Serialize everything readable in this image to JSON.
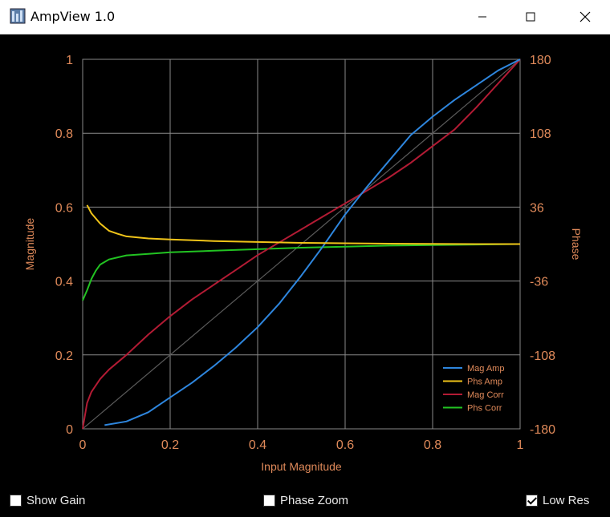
{
  "window": {
    "title": "AmpView 1.0"
  },
  "window_controls": {
    "minimize": "—",
    "maximize": "☐",
    "close": "✕"
  },
  "chart_data": {
    "type": "line",
    "xlabel": "Input Magnitude",
    "ylabel": "Magnitude",
    "y2label": "Phase",
    "xlim": [
      0,
      1
    ],
    "ylim": [
      0,
      1
    ],
    "y2lim": [
      -180,
      180
    ],
    "x_ticks": [
      "0",
      "0.2",
      "0.4",
      "0.6",
      "0.8",
      "1"
    ],
    "y_ticks": [
      "0",
      "0.2",
      "0.4",
      "0.6",
      "0.8",
      "1"
    ],
    "y2_ticks": [
      "-180",
      "-108",
      "-36",
      "36",
      "108",
      "180"
    ],
    "grid": true,
    "legend_position": "bottom-right",
    "series": [
      {
        "name": "Mag Amp",
        "axis": "left",
        "color": "#2e86de",
        "x": [
          0.05,
          0.1,
          0.15,
          0.2,
          0.25,
          0.3,
          0.35,
          0.4,
          0.45,
          0.5,
          0.55,
          0.6,
          0.65,
          0.7,
          0.75,
          0.8,
          0.85,
          0.9,
          0.95,
          1.0
        ],
        "y": [
          0.01,
          0.02,
          0.045,
          0.085,
          0.125,
          0.17,
          0.22,
          0.275,
          0.34,
          0.415,
          0.495,
          0.58,
          0.655,
          0.725,
          0.795,
          0.845,
          0.89,
          0.93,
          0.97,
          1.0
        ]
      },
      {
        "name": "Phs Amp",
        "axis": "right",
        "color": "#f0c419",
        "x": [
          0.01,
          0.02,
          0.04,
          0.06,
          0.08,
          0.1,
          0.15,
          0.2,
          0.3,
          0.4,
          0.5,
          0.6,
          0.7,
          0.8,
          0.9,
          1.0
        ],
        "y": [
          38,
          30,
          20,
          13,
          10,
          7.5,
          5.5,
          4.5,
          3,
          2,
          1.2,
          0.8,
          0.4,
          0.2,
          0,
          0
        ]
      },
      {
        "name": "Mag Corr",
        "axis": "left",
        "color": "#b31b34",
        "x": [
          0,
          0.01,
          0.02,
          0.04,
          0.06,
          0.1,
          0.15,
          0.2,
          0.25,
          0.3,
          0.35,
          0.4,
          0.45,
          0.5,
          0.55,
          0.6,
          0.65,
          0.7,
          0.75,
          0.8,
          0.85,
          0.9,
          0.95,
          1.0
        ],
        "y": [
          0,
          0.07,
          0.1,
          0.135,
          0.16,
          0.2,
          0.255,
          0.305,
          0.35,
          0.39,
          0.43,
          0.47,
          0.505,
          0.54,
          0.575,
          0.61,
          0.645,
          0.68,
          0.72,
          0.765,
          0.81,
          0.87,
          0.935,
          1.0
        ]
      },
      {
        "name": "Phs Corr",
        "axis": "right",
        "color": "#22c322",
        "x": [
          0,
          0.005,
          0.01,
          0.02,
          0.03,
          0.04,
          0.06,
          0.08,
          0.1,
          0.15,
          0.2,
          0.3,
          0.4,
          0.5,
          0.6,
          0.7,
          0.8,
          0.9,
          1.0
        ],
        "y": [
          -55,
          -50,
          -45,
          -34,
          -26,
          -20,
          -15,
          -13,
          -11,
          -9.5,
          -8,
          -6.5,
          -5,
          -3.5,
          -2.5,
          -1.5,
          -1,
          -0.5,
          0
        ]
      },
      {
        "name": "",
        "axis": "left",
        "color": "#5a5a5a",
        "x": [
          0,
          1
        ],
        "y": [
          0,
          1
        ]
      }
    ]
  },
  "controls": {
    "show_gain": {
      "label": "Show Gain",
      "checked": false
    },
    "phase_zoom": {
      "label": "Phase Zoom",
      "checked": false
    },
    "low_res": {
      "label": "Low Res",
      "checked": true
    }
  }
}
